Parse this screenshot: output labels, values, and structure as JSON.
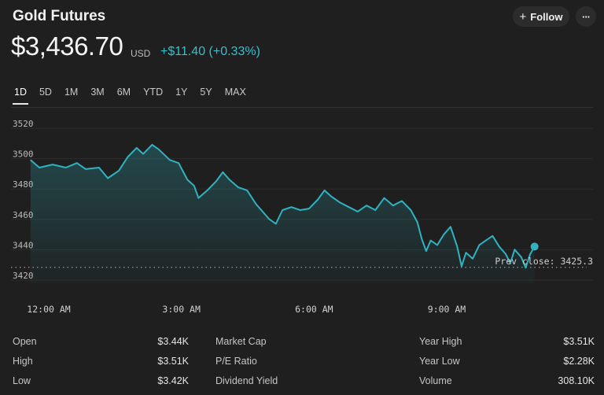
{
  "header": {
    "title": "Gold Futures",
    "follow_label": "Follow",
    "follow_icon": "+",
    "more_icon": "···"
  },
  "quote": {
    "price": "$3,436.70",
    "currency": "USD",
    "change": "+$11.40 (+0.33%)"
  },
  "tabs": [
    {
      "label": "1D",
      "active": true
    },
    {
      "label": "5D",
      "active": false
    },
    {
      "label": "1M",
      "active": false
    },
    {
      "label": "3M",
      "active": false
    },
    {
      "label": "6M",
      "active": false
    },
    {
      "label": "YTD",
      "active": false
    },
    {
      "label": "1Y",
      "active": false
    },
    {
      "label": "5Y",
      "active": false
    },
    {
      "label": "MAX",
      "active": false
    }
  ],
  "chart_data": {
    "type": "area",
    "ylim": [
      3415,
      3525
    ],
    "xlim": [
      -1.0,
      10.7
    ],
    "y_ticks": [
      3520,
      3500,
      3480,
      3460,
      3440,
      3420
    ],
    "x_ticks": [
      {
        "label": "12:00 AM",
        "x": 0
      },
      {
        "label": "3:00 AM",
        "x": 3
      },
      {
        "label": "6:00 AM",
        "x": 6
      },
      {
        "label": "9:00 AM",
        "x": 9
      }
    ],
    "prev_close": 3425.3,
    "prev_close_label": "Prev close: 3425.3",
    "line_color": "#2fb3c0",
    "last_value": 3439.1,
    "series": [
      {
        "x": -0.2,
        "y": 3496
      },
      {
        "x": 0.0,
        "y": 3491
      },
      {
        "x": 0.3,
        "y": 3493
      },
      {
        "x": 0.6,
        "y": 3491
      },
      {
        "x": 0.85,
        "y": 3494
      },
      {
        "x": 1.05,
        "y": 3490
      },
      {
        "x": 1.35,
        "y": 3491
      },
      {
        "x": 1.55,
        "y": 3484
      },
      {
        "x": 1.8,
        "y": 3489
      },
      {
        "x": 2.0,
        "y": 3498
      },
      {
        "x": 2.2,
        "y": 3504
      },
      {
        "x": 2.35,
        "y": 3500
      },
      {
        "x": 2.55,
        "y": 3506
      },
      {
        "x": 2.7,
        "y": 3503
      },
      {
        "x": 2.95,
        "y": 3496
      },
      {
        "x": 3.15,
        "y": 3494
      },
      {
        "x": 3.35,
        "y": 3483
      },
      {
        "x": 3.5,
        "y": 3479
      },
      {
        "x": 3.6,
        "y": 3471
      },
      {
        "x": 3.8,
        "y": 3476
      },
      {
        "x": 4.0,
        "y": 3482
      },
      {
        "x": 4.15,
        "y": 3488
      },
      {
        "x": 4.3,
        "y": 3483
      },
      {
        "x": 4.5,
        "y": 3478
      },
      {
        "x": 4.7,
        "y": 3476
      },
      {
        "x": 4.9,
        "y": 3467
      },
      {
        "x": 5.05,
        "y": 3462
      },
      {
        "x": 5.2,
        "y": 3457
      },
      {
        "x": 5.35,
        "y": 3454
      },
      {
        "x": 5.5,
        "y": 3463
      },
      {
        "x": 5.7,
        "y": 3465
      },
      {
        "x": 5.9,
        "y": 3463
      },
      {
        "x": 6.1,
        "y": 3464
      },
      {
        "x": 6.3,
        "y": 3470
      },
      {
        "x": 6.45,
        "y": 3476
      },
      {
        "x": 6.6,
        "y": 3472
      },
      {
        "x": 6.8,
        "y": 3468
      },
      {
        "x": 7.0,
        "y": 3465
      },
      {
        "x": 7.2,
        "y": 3462
      },
      {
        "x": 7.4,
        "y": 3466
      },
      {
        "x": 7.6,
        "y": 3463
      },
      {
        "x": 7.8,
        "y": 3471
      },
      {
        "x": 8.0,
        "y": 3466
      },
      {
        "x": 8.2,
        "y": 3469
      },
      {
        "x": 8.4,
        "y": 3463
      },
      {
        "x": 8.55,
        "y": 3455
      },
      {
        "x": 8.65,
        "y": 3444
      },
      {
        "x": 8.75,
        "y": 3436
      },
      {
        "x": 8.85,
        "y": 3443
      },
      {
        "x": 9.0,
        "y": 3440
      },
      {
        "x": 9.15,
        "y": 3447
      },
      {
        "x": 9.3,
        "y": 3452
      },
      {
        "x": 9.45,
        "y": 3439
      },
      {
        "x": 9.55,
        "y": 3426
      },
      {
        "x": 9.65,
        "y": 3435
      },
      {
        "x": 9.8,
        "y": 3431
      },
      {
        "x": 9.95,
        "y": 3440
      },
      {
        "x": 10.1,
        "y": 3443
      },
      {
        "x": 10.25,
        "y": 3446
      },
      {
        "x": 10.4,
        "y": 3439
      },
      {
        "x": 10.55,
        "y": 3434
      },
      {
        "x": 10.65,
        "y": 3428
      },
      {
        "x": 10.75,
        "y": 3437
      },
      {
        "x": 10.9,
        "y": 3432
      },
      {
        "x": 11.0,
        "y": 3425
      },
      {
        "x": 11.1,
        "y": 3434
      },
      {
        "x": 11.2,
        "y": 3439
      }
    ]
  },
  "stats": {
    "col1": [
      {
        "label": "Open",
        "value": "$3.44K"
      },
      {
        "label": "High",
        "value": "$3.51K"
      },
      {
        "label": "Low",
        "value": "$3.42K"
      }
    ],
    "col2": [
      {
        "label": "Market Cap",
        "value": ""
      },
      {
        "label": "P/E Ratio",
        "value": ""
      },
      {
        "label": "Dividend Yield",
        "value": ""
      }
    ],
    "col3": [
      {
        "label": "Year High",
        "value": "$3.51K"
      },
      {
        "label": "Year Low",
        "value": "$2.28K"
      },
      {
        "label": "Volume",
        "value": "308.10K"
      }
    ]
  }
}
